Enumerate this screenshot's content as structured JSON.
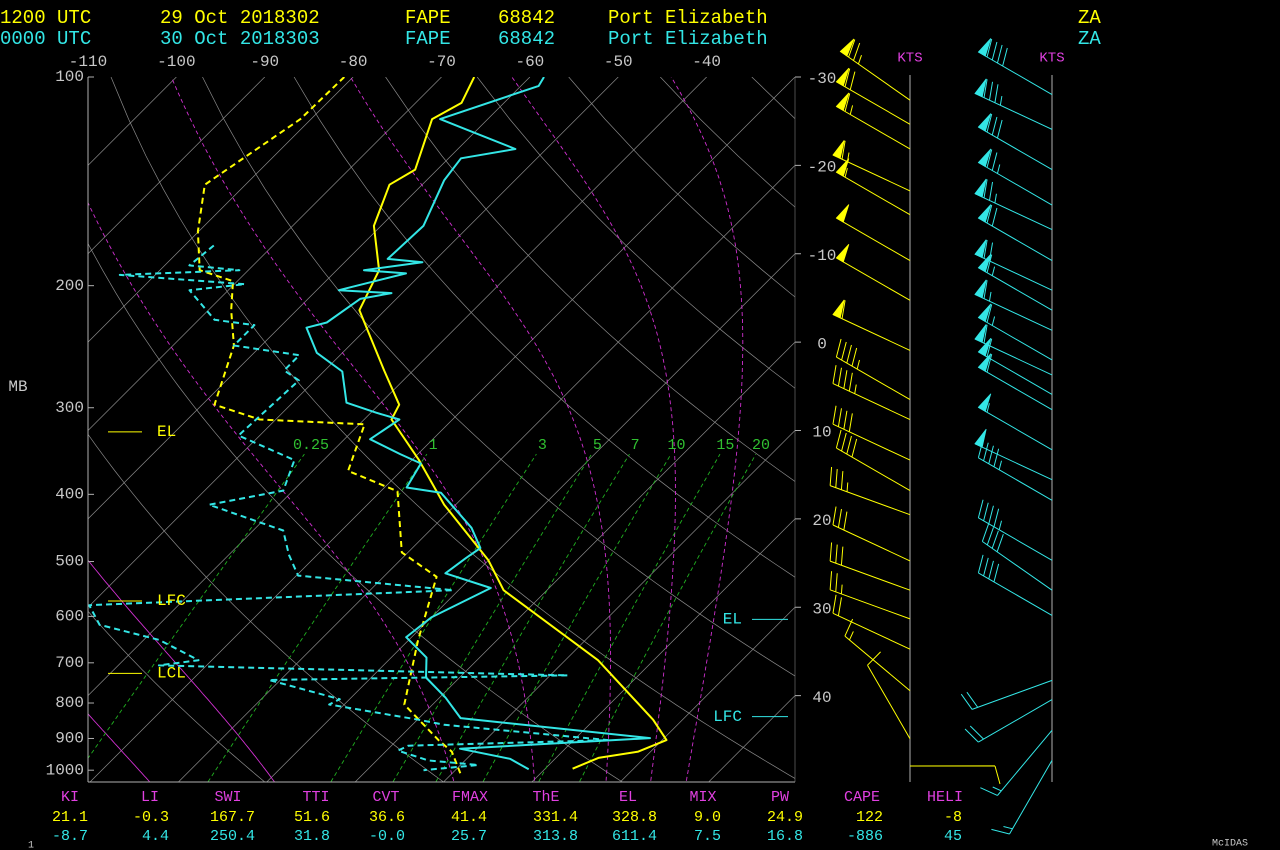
{
  "header": [
    {
      "time": "1200 UTC",
      "date": "29 Oct 2018302",
      "station": "FAPE",
      "id": "68842",
      "name": "Port Elizabeth",
      "country": "ZA"
    },
    {
      "time": "0000 UTC",
      "date": "30 Oct 2018303",
      "station": "FAPE",
      "id": "68842",
      "name": "Port Elizabeth",
      "country": "ZA"
    }
  ],
  "chart_data": {
    "type": "skewt",
    "ylabel": "MB",
    "ylim": [
      1040,
      100
    ],
    "yticks": [
      100,
      200,
      300,
      400,
      500,
      600,
      700,
      800,
      900,
      1000
    ],
    "log_y": true,
    "xlim": [
      -110,
      -30
    ],
    "xticks": [
      -110,
      -100,
      -90,
      -80,
      -70,
      -60,
      -50,
      -40
    ],
    "isotherm_labels": [
      -30,
      -20,
      -10,
      0,
      10,
      20,
      30,
      40
    ],
    "mixing_ratio_labels": [
      0.25,
      1,
      3,
      5,
      7,
      10,
      15,
      20
    ],
    "wind_unit": "KTS",
    "soundings": [
      {
        "color": "#ffff00",
        "temperature": {
          "pressure": [
            100,
            109,
            115,
            136,
            143,
            164,
            190,
            217,
            265,
            297,
            312,
            357,
            414,
            498,
            550,
            694,
            846,
            905,
            940,
            960,
            995
          ],
          "values": [
            -66.3,
            -64.8,
            -66.3,
            -62.5,
            -63.7,
            -60.8,
            -55.2,
            -52.9,
            -43.3,
            -37.7,
            -36.9,
            -29.2,
            -21.3,
            -10,
            -4.9,
            13.7,
            26.7,
            30.5,
            28.6,
            24.8,
            23.1
          ]
        },
        "dewpoint": {
          "pressure": [
            100,
            115,
            143,
            167,
            190,
            197,
            217,
            244,
            297,
            312,
            317,
            370,
            396,
            485,
            526,
            650,
            804,
            905,
            940,
            1010
          ],
          "values": [
            -81,
            -81.2,
            -84.6,
            -80.1,
            -75.5,
            -70.5,
            -67.4,
            -63.1,
            -58.6,
            -51.8,
            -39.4,
            -36,
            -28.1,
            -20.7,
            -14,
            -8.9,
            -3.2,
            4.7,
            7.5,
            10.9
          ]
        },
        "parcel_levels": [
          {
            "label": "EL",
            "pressure": 325
          },
          {
            "label": "LFC",
            "pressure": 570
          },
          {
            "label": "LCL",
            "pressure": 725
          }
        ],
        "wind": {
          "pressure": [
            108,
            117,
            127,
            146,
            158,
            184,
            210,
            248,
            292,
            312,
            357,
            395,
            428,
            499,
            550,
            605,
            669,
            768,
            901,
            986
          ],
          "direction": [
            305,
            300,
            300,
            295,
            300,
            300,
            300,
            295,
            300,
            295,
            295,
            300,
            290,
            295,
            290,
            290,
            295,
            310,
            330,
            90
          ],
          "speed": [
            75,
            70,
            65,
            65,
            55,
            50,
            50,
            60,
            45,
            45,
            40,
            40,
            35,
            30,
            30,
            25,
            20,
            15,
            10,
            10
          ]
        }
      },
      {
        "color": "#33e6e6",
        "temperature": {
          "pressure": [
            100,
            103,
            115,
            127,
            131,
            141,
            164,
            183,
            185,
            190,
            192,
            203,
            205,
            209,
            226,
            230,
            250,
            266,
            295,
            305,
            312,
            333,
            350,
            361,
            391,
            398,
            447,
            478,
            494,
            520,
            546,
            602,
            643,
            688,
            735,
            786,
            841,
            899,
            931,
            963,
            997
          ],
          "values": [
            -58.4,
            -58,
            -65.4,
            -53.5,
            -58.6,
            -58,
            -55.2,
            -55.5,
            -51.2,
            -56.9,
            -51.8,
            -57.5,
            -51.2,
            -54.1,
            -55.2,
            -56.9,
            -52.9,
            -47.9,
            -43.9,
            -39.4,
            -36,
            -37.1,
            -32,
            -28.6,
            -27.5,
            -23,
            -15.6,
            -12.3,
            -12.8,
            -13.4,
            -6.6,
            -10,
            -10.6,
            -6,
            -3.8,
            0.7,
            4.7,
            28.4,
            8.1,
            14.9,
            18.2
          ]
        },
        "dewpoint": {
          "pressure": [
            175,
            187,
            190,
            193,
            199,
            203,
            224,
            228,
            244,
            252,
            265,
            274,
            329,
            357,
            395,
            414,
            451,
            489,
            524,
            550,
            578,
            617,
            649,
            694,
            706,
            730,
            741,
            790,
            804,
            846,
            860,
            905,
            922,
            937,
            968,
            983,
            1000
          ],
          "values": [
            -76.7,
            -77.2,
            -71,
            -84,
            -68.8,
            -74.4,
            -68.2,
            -63.1,
            -63.1,
            -54.6,
            -54.6,
            -51.8,
            -52.4,
            -43.3,
            -41.1,
            -47.9,
            -36.6,
            -33.2,
            -29.8,
            -10.6,
            -50.1,
            -46.7,
            -38.2,
            -31.5,
            -35.4,
            12,
            -21.3,
            -11.1,
            -11.7,
            0.2,
            3.6,
            23.9,
            1.9,
            1.3,
            5.8,
            12,
            6.4
          ]
        },
        "parcel_levels": [
          {
            "label": "EL",
            "pressure": 606
          },
          {
            "label": "LFC",
            "pressure": 837
          }
        ],
        "wind": {
          "pressure": [
            106,
            119,
            136,
            153,
            166,
            184,
            203,
            217,
            232,
            256,
            269,
            287,
            302,
            345,
            381,
            408,
            498,
            550,
            598,
            742,
            791,
            876,
            968
          ],
          "direction": [
            300,
            295,
            300,
            300,
            295,
            300,
            295,
            300,
            295,
            300,
            295,
            300,
            300,
            300,
            295,
            300,
            300,
            305,
            300,
            250,
            240,
            220,
            210
          ],
          "speed": [
            90,
            85,
            80,
            75,
            75,
            70,
            70,
            65,
            65,
            65,
            60,
            60,
            60,
            55,
            50,
            45,
            45,
            40,
            40,
            20,
            20,
            15,
            15
          ]
        }
      }
    ]
  },
  "indices": {
    "labels": [
      "KI",
      "LI",
      "SWI",
      "TTI",
      "CVT",
      "FMAX",
      "ThE",
      "EL",
      "MIX",
      "PW",
      "CAPE",
      "HELI"
    ],
    "rows": [
      [
        "21.1",
        "-0.3",
        "167.7",
        "51.6",
        "36.6",
        "41.4",
        "331.4",
        "328.8",
        "9.0",
        "24.9",
        "122",
        "-8"
      ],
      [
        "-8.7",
        "4.4",
        "250.4",
        "31.8",
        "-0.0",
        "25.7",
        "313.8",
        "611.4",
        "7.5",
        "16.8",
        "-886",
        "45"
      ]
    ]
  },
  "footer": {
    "frame": "1",
    "logo": "McIDAS"
  }
}
